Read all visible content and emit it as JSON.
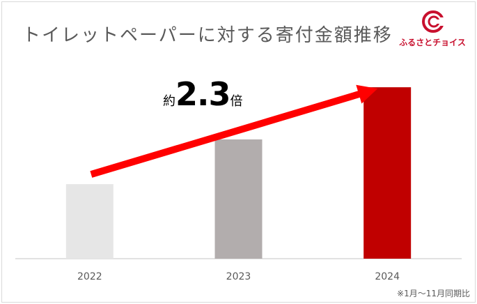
{
  "title": "トイレットペーパーに対する寄付金額推移",
  "brand": {
    "name": "ふるさとチョイス",
    "logo_icon": "c-logo-icon",
    "color": "#c8102e"
  },
  "annotation": {
    "prefix": "約",
    "value": "2.3",
    "suffix": "倍"
  },
  "footnote": "※1月〜11月同期比",
  "chart_data": {
    "type": "bar",
    "categories": [
      "2022",
      "2023",
      "2024"
    ],
    "values": [
      1.0,
      1.6,
      2.3
    ],
    "colors": [
      "#e6e6e6",
      "#b2adad",
      "#c00000"
    ],
    "title": "トイレットペーパーに対する寄付金額推移",
    "xlabel": "",
    "ylabel": "",
    "ylim": [
      0,
      2.9
    ],
    "grid": false,
    "trend_arrow_color": "#ff0000"
  }
}
